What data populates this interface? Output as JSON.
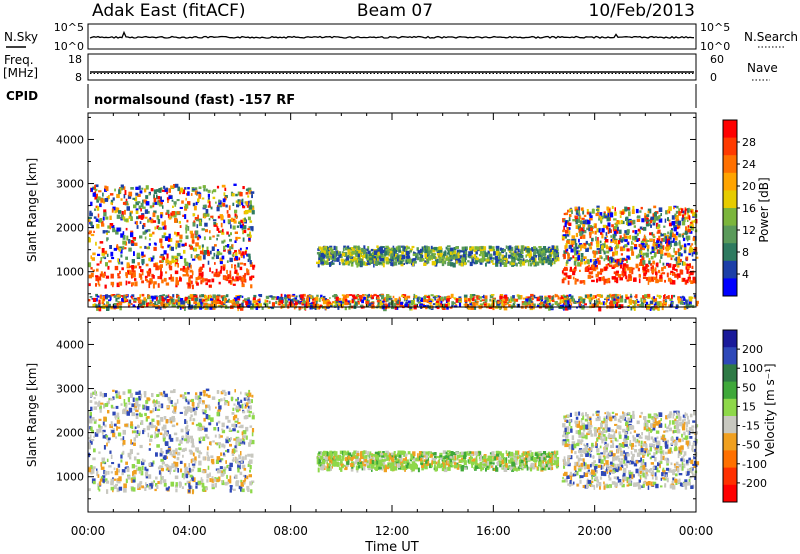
{
  "header": {
    "station": "Adak East (fitACF)",
    "beam": "Beam 07",
    "date": "10/Feb/2013"
  },
  "strips": {
    "nsky": {
      "label": "N.Sky",
      "left_ticks": [
        "10^5",
        "10^0"
      ]
    },
    "nsearch": {
      "label": "N.Search",
      "right_ticks": [
        "10^5",
        "10^0"
      ]
    },
    "freq": {
      "label": "Freq.",
      "unit": "[MHz]",
      "left_ticks": [
        "18",
        "8"
      ]
    },
    "nave": {
      "label": "Nave",
      "right_ticks": [
        "60",
        "0"
      ]
    },
    "cpid": {
      "label": "CPID",
      "value": "normalsound (fast) -157 RF"
    }
  },
  "power_colorbar": {
    "label": "Power [dB]",
    "ticks": [
      "28",
      "24",
      "20",
      "16",
      "12",
      "8",
      "4"
    ],
    "colors": [
      "#ff0000",
      "#ff3a00",
      "#ff7000",
      "#ffa400",
      "#e6cc00",
      "#7bb53c",
      "#5a9a5a",
      "#2e7a60",
      "#1c3fa8",
      "#0000ff"
    ]
  },
  "velocity_colorbar": {
    "label": "Velocity [m s⁻¹]",
    "ticks": [
      "200",
      "100",
      "50",
      "15",
      "-15",
      "-50",
      "-100",
      "-200"
    ],
    "colors": [
      "#1a1a9a",
      "#2e48b8",
      "#2e7a45",
      "#3fa83a",
      "#8ed84a",
      "#c8c8c0",
      "#f0a020",
      "#ff7000",
      "#ff3000",
      "#ff0000"
    ]
  },
  "chart_data": {
    "type": "heatmap",
    "xlabel": "Time UT",
    "ylabel": "Slant Range [km]",
    "x_ticks": [
      "00:00",
      "04:00",
      "08:00",
      "12:00",
      "16:00",
      "20:00",
      "00:00"
    ],
    "y_ticks": [
      "1000",
      "2000",
      "3000",
      "4000"
    ],
    "xlim": [
      0,
      24
    ],
    "ylim": [
      200,
      4600
    ],
    "panels": [
      {
        "name": "Power [dB]",
        "echo_regions": [
          {
            "t_start": 0.0,
            "t_end": 6.5,
            "range_low": 700,
            "range_high": 3000,
            "typical_value": "16-28 dB"
          },
          {
            "t_start": 9.0,
            "t_end": 18.5,
            "range_low": 1200,
            "range_high": 1600,
            "typical_value": "8-16 dB"
          },
          {
            "t_start": 18.7,
            "t_end": 24.0,
            "range_low": 800,
            "range_high": 2500,
            "typical_value": "16-28 dB"
          },
          {
            "t_start": 0.0,
            "t_end": 24.0,
            "range_low": 200,
            "range_high": 500,
            "typical_value": "ground scatter clutter"
          }
        ]
      },
      {
        "name": "Velocity [m s-1]",
        "echo_regions": [
          {
            "t_start": 0.0,
            "t_end": 6.5,
            "range_low": 700,
            "range_high": 3000,
            "typical_value": "-15 to 15"
          },
          {
            "t_start": 9.0,
            "t_end": 18.5,
            "range_low": 1200,
            "range_high": 1600,
            "typical_value": "15 to 50"
          },
          {
            "t_start": 18.7,
            "t_end": 24.0,
            "range_low": 800,
            "range_high": 2500,
            "typical_value": "-15 to 15"
          }
        ]
      }
    ]
  }
}
